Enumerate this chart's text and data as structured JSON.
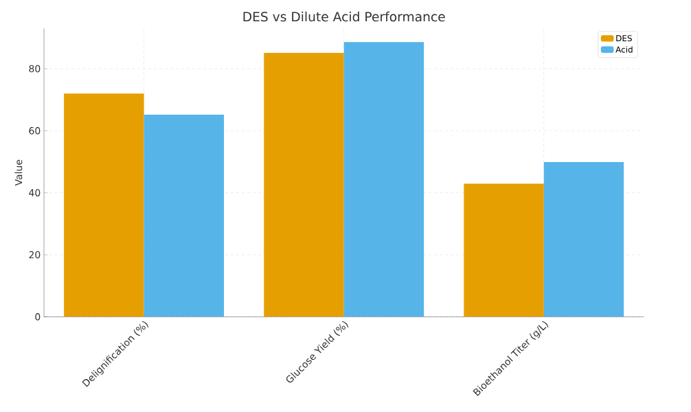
{
  "chart_data": {
    "type": "bar",
    "title": "DES vs Dilute Acid Performance",
    "ylabel": "Value",
    "categories": [
      "Delignification (%)",
      "Glucose Yield (%)",
      "Bioethanol Titer (g/L)"
    ],
    "series": [
      {
        "name": "DES",
        "color": "#e69f00",
        "values": [
          72.0,
          85.1,
          42.9
        ]
      },
      {
        "name": "Acid",
        "color": "#56b4e9",
        "values": [
          65.2,
          88.6,
          49.9
        ]
      }
    ],
    "ylim": [
      0,
      93
    ],
    "yticks": [
      0,
      20,
      40,
      60,
      80
    ],
    "grid": true,
    "legend": "top right"
  }
}
